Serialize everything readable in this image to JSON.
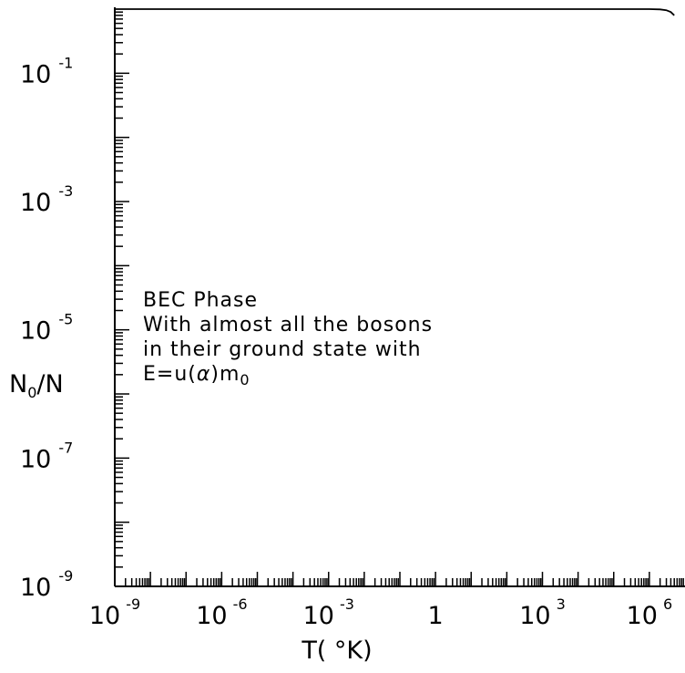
{
  "chart_data": {
    "type": "line",
    "xlabel": "T( °K)",
    "ylabel": "N0/N",
    "ylabel_main": "N",
    "ylabel_sub": "0",
    "ylabel_rest": "/N",
    "x_scale": "log",
    "y_scale": "log",
    "xlim": [
      1e-09,
      10000000.0
    ],
    "ylim": [
      1e-09,
      1
    ],
    "grid": false,
    "x_ticks": [
      {
        "value": 1e-09,
        "base": "10",
        "exp": "-9"
      },
      {
        "value": 1e-06,
        "base": "10",
        "exp": "-6"
      },
      {
        "value": 0.001,
        "base": "10",
        "exp": "-3"
      },
      {
        "value": 1,
        "base": "1",
        "exp": ""
      },
      {
        "value": 1000.0,
        "base": "10",
        "exp": "3"
      },
      {
        "value": 1000000.0,
        "base": "10",
        "exp": "6"
      }
    ],
    "y_ticks": [
      {
        "value": 0.1,
        "base": "10",
        "exp": "-1"
      },
      {
        "value": 0.001,
        "base": "10",
        "exp": "-3"
      },
      {
        "value": 1e-05,
        "base": "10",
        "exp": "-5"
      },
      {
        "value": 1e-07,
        "base": "10",
        "exp": "-7"
      },
      {
        "value": 1e-09,
        "base": "10",
        "exp": "-9"
      }
    ],
    "series": [
      {
        "x": [
          1e-09,
          1e-06,
          0.001,
          1,
          1000.0,
          100000.0,
          1000000.0,
          2000000.0,
          3000000.0,
          4000000.0,
          5000000.0
        ],
        "y": [
          1,
          1,
          1,
          1,
          1,
          1,
          0.999,
          0.99,
          0.96,
          0.9,
          0.8
        ]
      }
    ],
    "annotation": {
      "lines": [
        "BEC Phase",
        "With almost all the bosons",
        "in their ground state with"
      ],
      "formula_prefix": "E=u(",
      "formula_alpha": "α",
      "formula_mid": ")m",
      "formula_sub": "0"
    }
  }
}
